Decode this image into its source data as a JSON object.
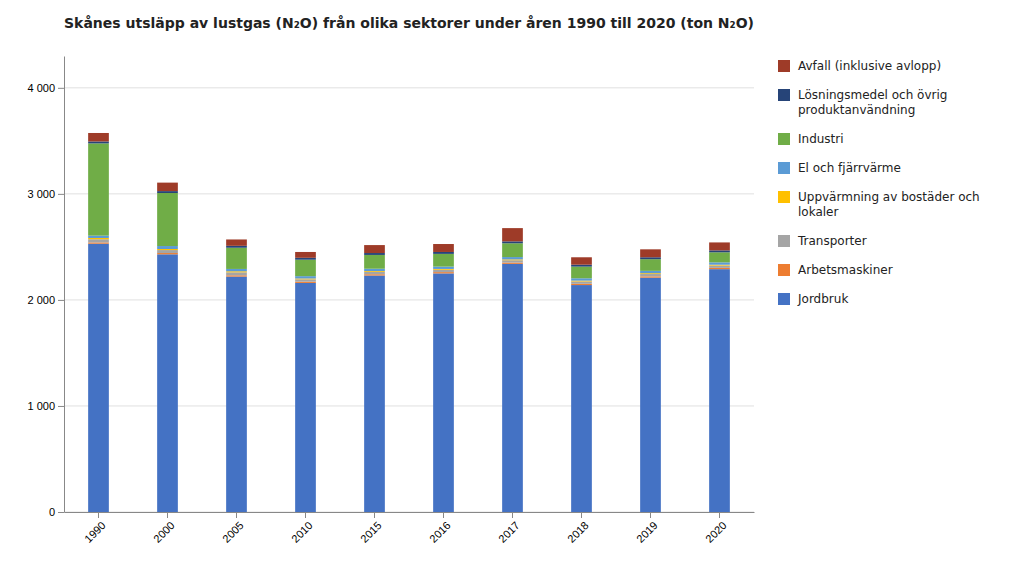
{
  "chart_data": {
    "type": "bar",
    "stacked": true,
    "title": "Skånes utsläpp av lustgas (N₂O) från olika sektorer under åren 1990 till 2020 (ton N₂O)",
    "categories": [
      "1990",
      "2000",
      "2005",
      "2010",
      "2015",
      "2016",
      "2017",
      "2018",
      "2019",
      "2020"
    ],
    "series": [
      {
        "name": "Jordbruk",
        "color": "#4472C4",
        "values": [
          2530,
          2430,
          2220,
          2160,
          2230,
          2250,
          2340,
          2140,
          2210,
          2290
        ]
      },
      {
        "name": "Arbetsmaskiner",
        "color": "#ED7D31",
        "values": [
          12,
          12,
          12,
          12,
          12,
          12,
          12,
          12,
          12,
          12
        ]
      },
      {
        "name": "Transporter",
        "color": "#A5A5A5",
        "values": [
          30,
          28,
          28,
          22,
          22,
          22,
          22,
          22,
          22,
          22
        ]
      },
      {
        "name": "Uppvärmning av bostäder och lokaler",
        "color": "#FFC000",
        "values": [
          12,
          10,
          10,
          8,
          8,
          8,
          8,
          8,
          8,
          8
        ]
      },
      {
        "name": "El och fjärrvärme",
        "color": "#5B9BD5",
        "values": [
          22,
          28,
          22,
          22,
          22,
          22,
          22,
          22,
          22,
          22
        ]
      },
      {
        "name": "Industri",
        "color": "#70AD47",
        "values": [
          870,
          500,
          200,
          155,
          130,
          120,
          130,
          110,
          110,
          95
        ]
      },
      {
        "name": "Lösningsmedel och övrig produktanvändning",
        "color": "#264478",
        "values": [
          18,
          18,
          18,
          18,
          18,
          18,
          18,
          18,
          18,
          18
        ]
      },
      {
        "name": "Avfall (inklusive avlopp)",
        "color": "#9E3B28",
        "values": [
          80,
          80,
          60,
          55,
          75,
          75,
          125,
          70,
          75,
          75
        ]
      }
    ],
    "ylim": [
      0,
      4300
    ],
    "yticks": [
      0,
      {
        "value": 1000,
        "label": "1 000"
      },
      {
        "value": 2000,
        "label": "2 000"
      },
      {
        "value": 3000,
        "label": "3 000"
      },
      {
        "value": 4000,
        "label": "4 000"
      }
    ],
    "grid": true,
    "legend": "right"
  }
}
